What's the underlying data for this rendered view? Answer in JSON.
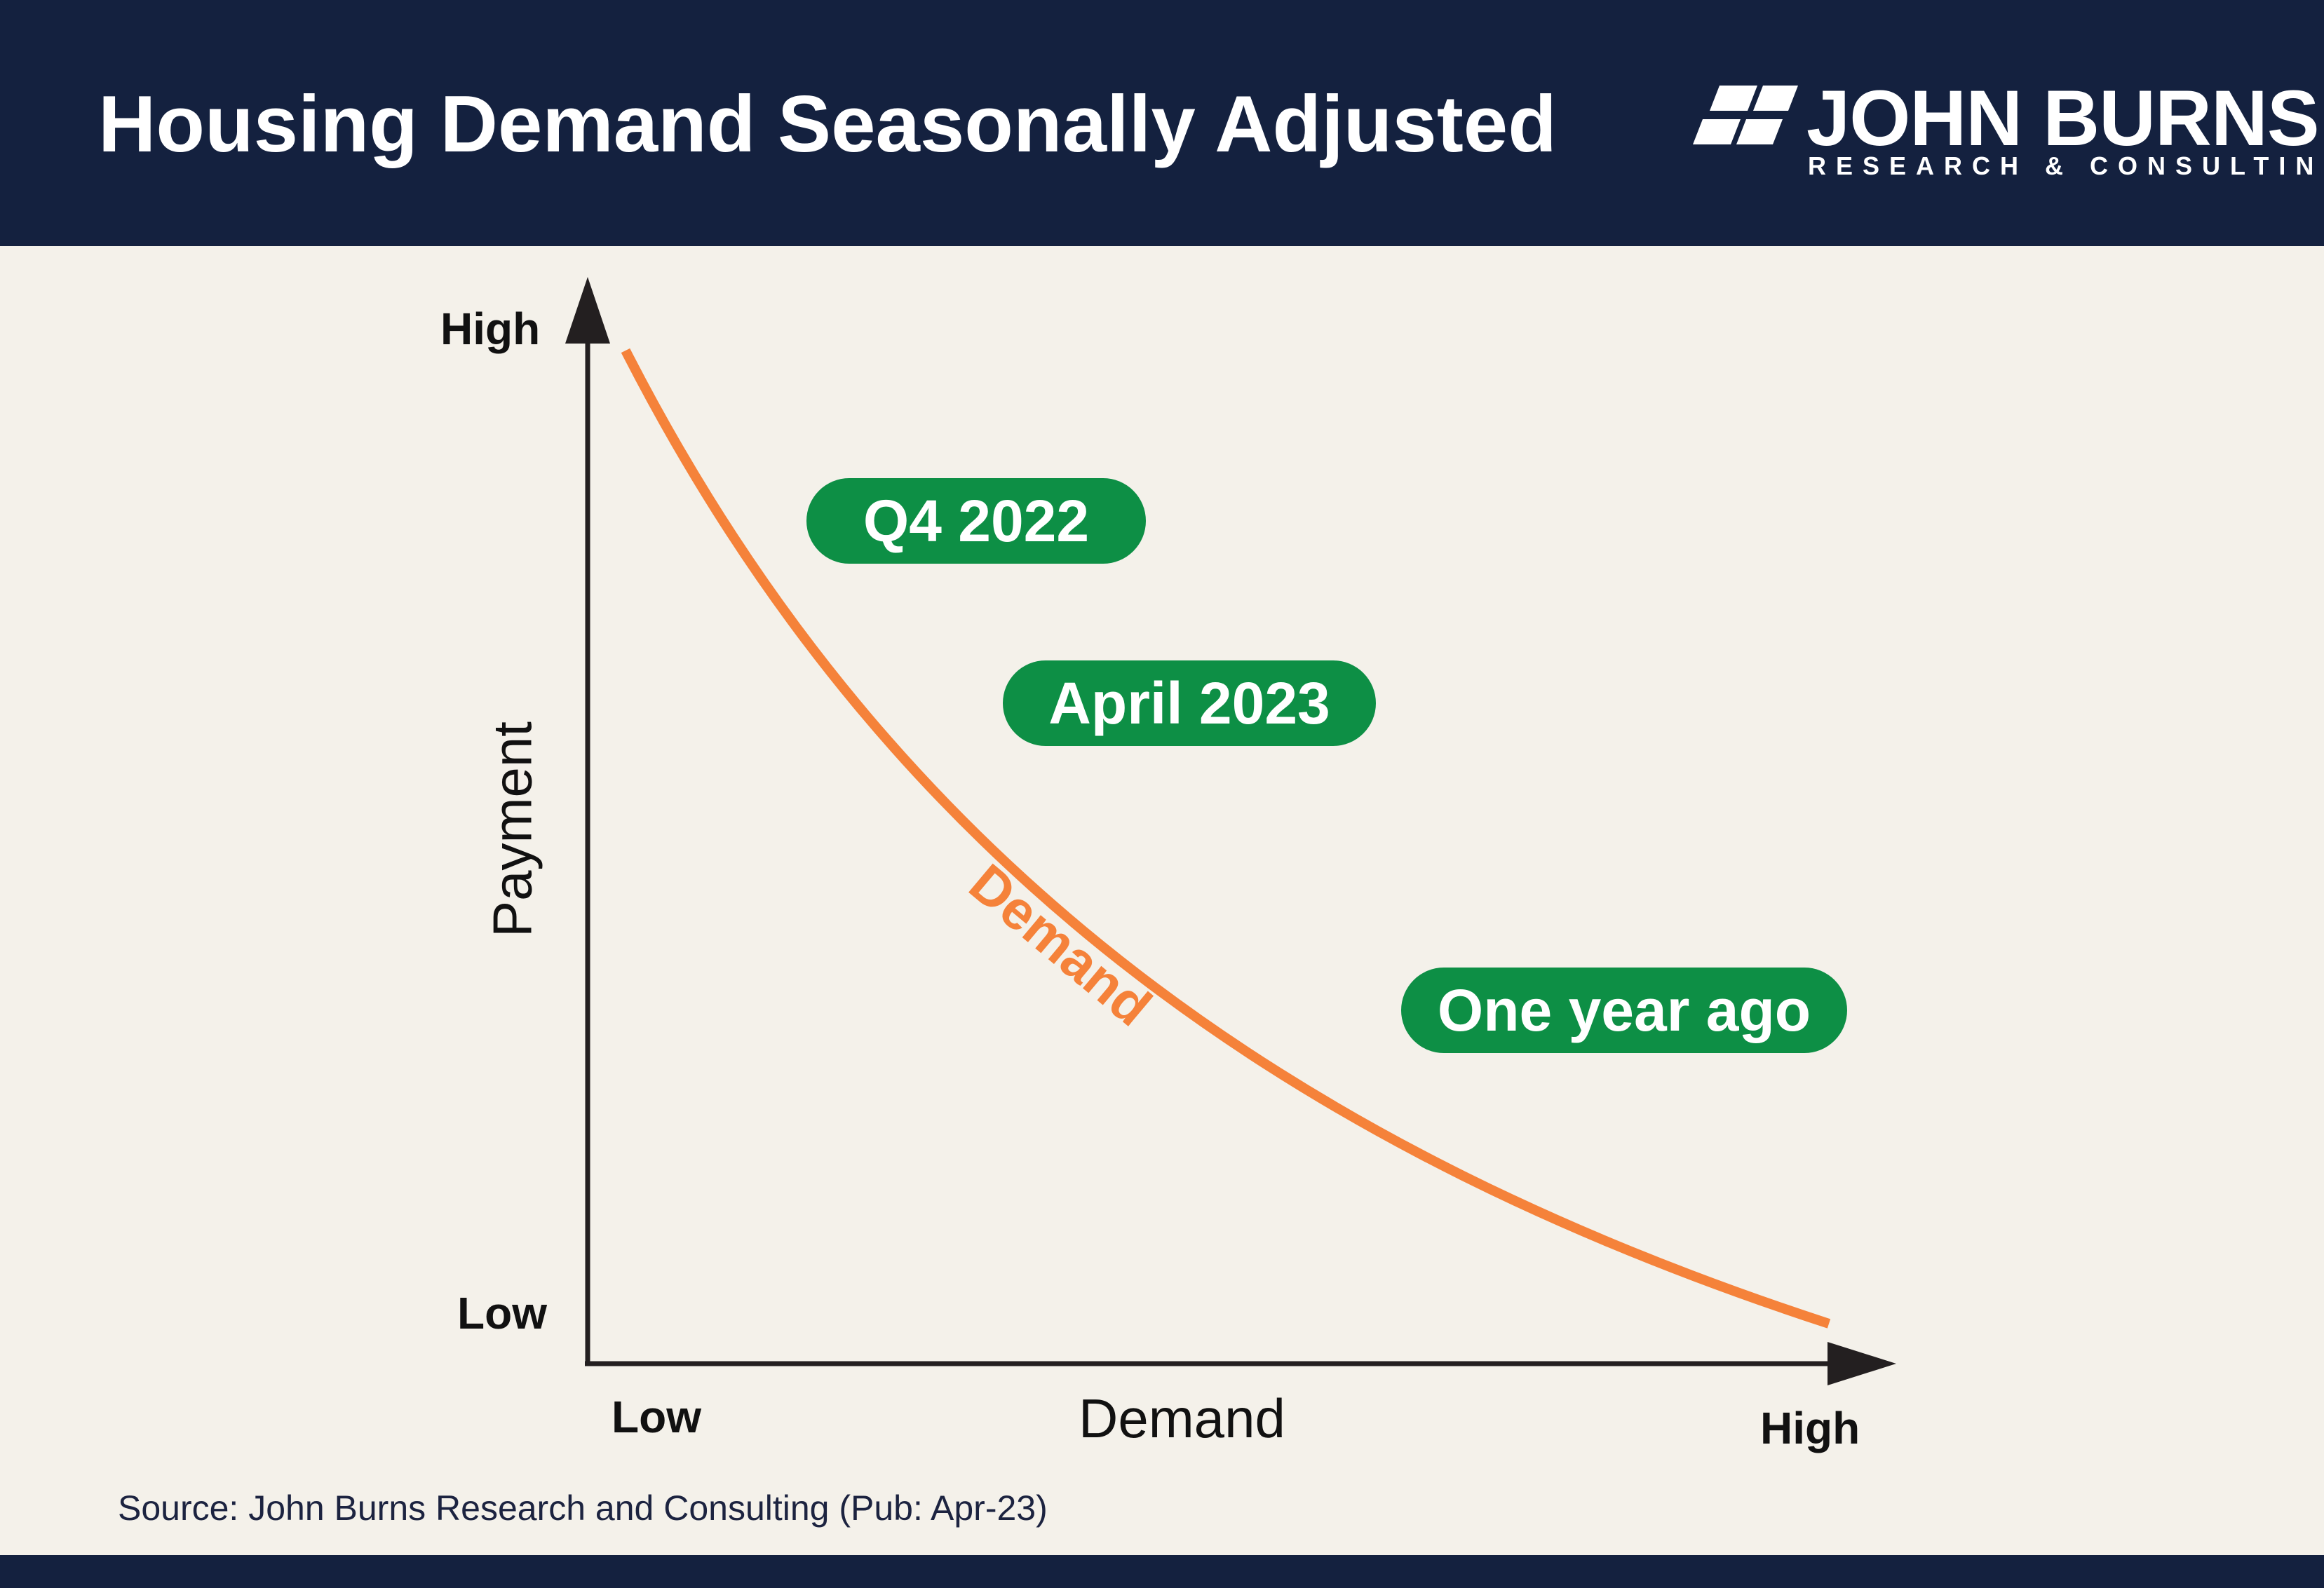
{
  "header": {
    "title": "Housing Demand Seasonally Adjusted",
    "background_color": "#14213f"
  },
  "logo": {
    "icon": "john-burns-logo-mark-icon",
    "name": "JOHN BURNS",
    "subtitle": "RESEARCH & CONSULTING"
  },
  "diagram": {
    "type": "line",
    "curve_color": "#f5823a",
    "pill_color": "#0d8f45",
    "y_axis": {
      "title": "Payment",
      "high_label": "High",
      "low_label": "Low"
    },
    "x_axis": {
      "title": "Demand",
      "low_label": "Low",
      "high_label": "High"
    },
    "curve_label": "Demand",
    "points": [
      "Q4 2022",
      "April 2023",
      "One year ago"
    ]
  },
  "source": "Source: John Burns Research and Consulting (Pub: Apr-23)"
}
